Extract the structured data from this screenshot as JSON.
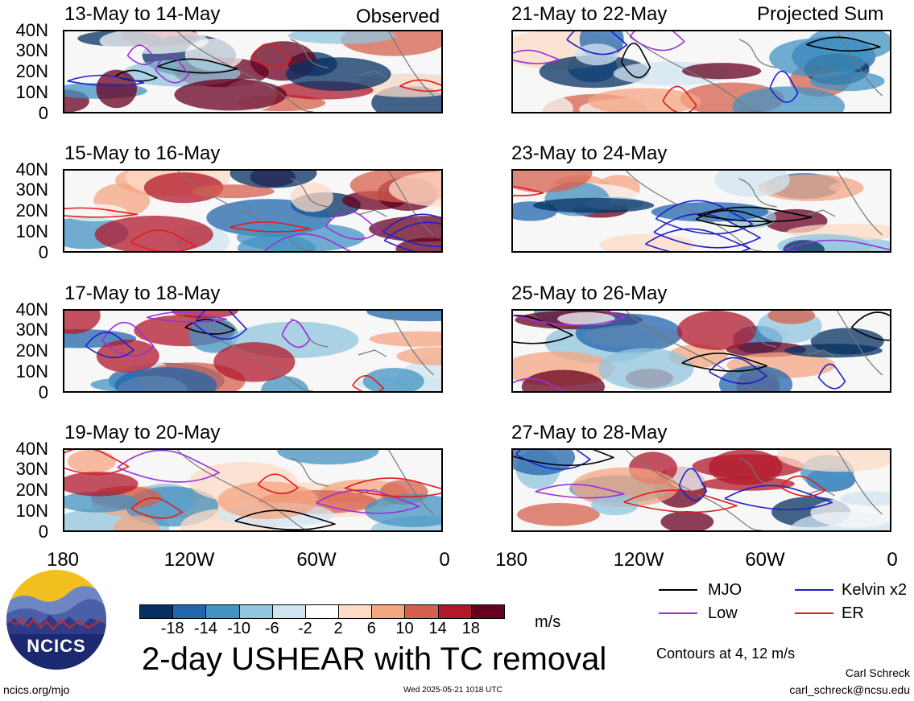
{
  "column_labels": {
    "left": "Observed",
    "right": "Projected Sum"
  },
  "y_ticks": [
    "40N",
    "30N",
    "20N",
    "10N",
    "0"
  ],
  "x_ticks": [
    "180",
    "120W",
    "60W",
    "0"
  ],
  "panels": [
    {
      "title": "13-May to 14-May",
      "column": "left"
    },
    {
      "title": "15-May to 16-May",
      "column": "left"
    },
    {
      "title": "17-May to 18-May",
      "column": "left"
    },
    {
      "title": "19-May to 20-May",
      "column": "left"
    },
    {
      "title": "21-May to 22-May",
      "column": "right"
    },
    {
      "title": "23-May to 24-May",
      "column": "right"
    },
    {
      "title": "25-May to 26-May",
      "column": "right"
    },
    {
      "title": "27-May to 28-May",
      "column": "right"
    }
  ],
  "colorbar": {
    "labels": [
      "-18",
      "-14",
      "-10",
      "-6",
      "-2",
      "2",
      "6",
      "10",
      "14",
      "18"
    ],
    "colors": [
      "#053061",
      "#2166ac",
      "#4393c3",
      "#92c5de",
      "#d1e5f0",
      "#ffffff",
      "#fddbc7",
      "#f4a582",
      "#d6604d",
      "#b2182b",
      "#67001f"
    ],
    "unit": "m/s"
  },
  "legend": {
    "items": [
      {
        "label": "MJO",
        "color": "#000000"
      },
      {
        "label": "Kelvin x2",
        "color": "#1f1fcc"
      },
      {
        "label": "Low",
        "color": "#9b30d9"
      },
      {
        "label": "ER",
        "color": "#e41a1c"
      }
    ],
    "contours_note": "Contours at 4, 12 m/s"
  },
  "main_title": "2-day USHEAR with TC removal",
  "logo_text": "NCICS",
  "footer": {
    "url": "ncics.org/mjo",
    "timestamp": "Wed 2025-05-21 1018 UTC",
    "author": "Carl Schreck",
    "email": "carl_schreck@ncsu.edu"
  }
}
